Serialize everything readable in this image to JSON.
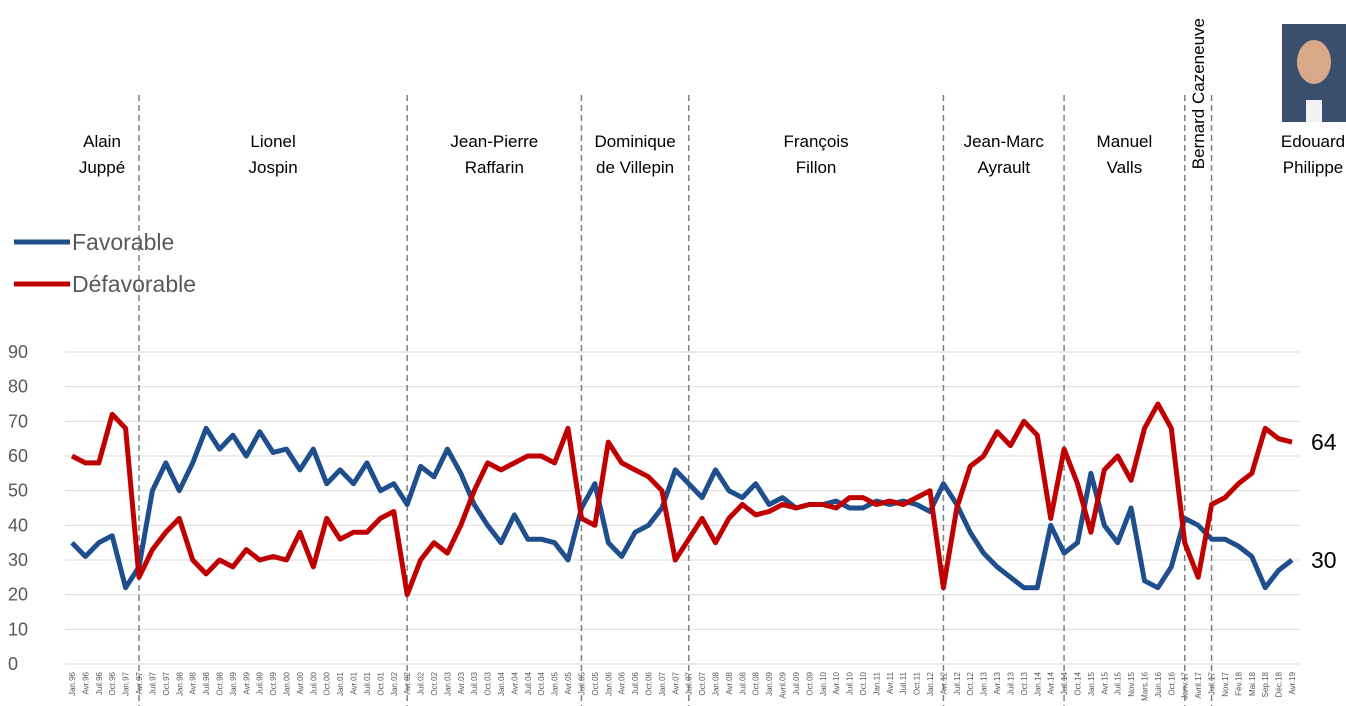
{
  "chart_data": {
    "type": "line",
    "categories": [
      "Jan.96",
      "Avr.96",
      "Juil.96",
      "Oct.96",
      "Jan.97",
      "Avr.97",
      "Juil.97",
      "Oct.97",
      "Jan.98",
      "Avr.98",
      "Juil.98",
      "Oct.98",
      "Jan.99",
      "Avr.99",
      "Juil.99",
      "Oct.99",
      "Jan.00",
      "Avr.00",
      "Juil.00",
      "Oct.00",
      "Jan.01",
      "Avr.01",
      "Juil.01",
      "Oct.01",
      "Jan.02",
      "Avr.02",
      "Juil.02",
      "Oct.02",
      "Jan.03",
      "Avr.03",
      "Juil.03",
      "Oct.03",
      "Jan.04",
      "Avr.04",
      "Juil.04",
      "Oct.04",
      "Jan.05",
      "Avr.05",
      "Juil.05",
      "Oct.05",
      "Jan.06",
      "Avr.06",
      "Juil.06",
      "Oct.06",
      "Jan.07",
      "Avr.07",
      "Juil.07",
      "Oct.07",
      "Jan.08",
      "Avr.08",
      "Juil.08",
      "Oct.08",
      "Jan.09",
      "Avril.09",
      "Juil.09",
      "Oct.09",
      "Jan.10",
      "Avr.10",
      "Juil.10",
      "Oct.10",
      "Jan.11",
      "Avr.11",
      "Juil.11",
      "Oct.11",
      "Jan.12",
      "Avr.12",
      "Juil.12",
      "Oct.12",
      "Jan.13",
      "Avr.13",
      "Juil.13",
      "Oct.13",
      "Jan.14",
      "Avr.14",
      "Juil.14",
      "Oct.14",
      "Jan.15",
      "Avr.15",
      "Juil.15",
      "Nov.15",
      "Mars.16",
      "Juin.16",
      "Oct.16",
      "Janv.17",
      "Avril.17",
      "Juil.17",
      "Nov.17",
      "Fév.18",
      "Mai.18",
      "Sep.18",
      "Déc.18",
      "Avr.19"
    ],
    "series": [
      {
        "name": "Favorable",
        "color": "#1f4e8c",
        "values": [
          35,
          31,
          35,
          37,
          22,
          28,
          50,
          58,
          50,
          58,
          68,
          62,
          66,
          60,
          67,
          61,
          62,
          56,
          62,
          52,
          56,
          52,
          58,
          50,
          52,
          46,
          57,
          54,
          62,
          55,
          46,
          40,
          35,
          43,
          36,
          36,
          35,
          30,
          45,
          52,
          35,
          31,
          38,
          40,
          45,
          56,
          52,
          48,
          56,
          50,
          48,
          52,
          46,
          48,
          45,
          46,
          46,
          47,
          45,
          45,
          47,
          46,
          47,
          46,
          44,
          52,
          46,
          38,
          32,
          28,
          25,
          22,
          22,
          40,
          32,
          35,
          55,
          40,
          35,
          45,
          24,
          22,
          28,
          42,
          40,
          36,
          36,
          34,
          31,
          22,
          27,
          30
        ]
      },
      {
        "name": "Défavorable",
        "color": "#c00000",
        "values": [
          60,
          58,
          58,
          72,
          68,
          25,
          33,
          38,
          42,
          30,
          26,
          30,
          28,
          33,
          30,
          31,
          30,
          38,
          28,
          42,
          36,
          38,
          38,
          42,
          44,
          20,
          30,
          35,
          32,
          40,
          50,
          58,
          56,
          58,
          60,
          60,
          58,
          68,
          42,
          40,
          64,
          58,
          56,
          54,
          50,
          30,
          36,
          42,
          35,
          42,
          46,
          43,
          44,
          46,
          45,
          46,
          46,
          45,
          48,
          48,
          46,
          47,
          46,
          48,
          50,
          22,
          45,
          57,
          60,
          67,
          63,
          70,
          66,
          42,
          62,
          52,
          38,
          56,
          60,
          53,
          68,
          75,
          68,
          35,
          25,
          46,
          48,
          52,
          55,
          68,
          65,
          64
        ]
      }
    ],
    "ylim": [
      0,
      90
    ],
    "yticks": [
      0,
      10,
      20,
      30,
      40,
      50,
      60,
      70,
      80,
      90
    ],
    "grid": true,
    "periods": [
      {
        "from": "Jan.96",
        "label": [
          "Alain",
          "Juppé"
        ]
      },
      {
        "from": "Avr.97",
        "label": [
          "Lionel",
          "Jospin"
        ]
      },
      {
        "from": "Avr.02",
        "label": [
          "Jean-Pierre",
          "Raffarin"
        ]
      },
      {
        "from": "Juil.05",
        "label": [
          "Dominique",
          "de Villepin"
        ]
      },
      {
        "from": "Juil.07",
        "label": [
          "François",
          "Fillon"
        ]
      },
      {
        "from": "Avr.12",
        "label": [
          "Jean-Marc",
          "Ayrault"
        ]
      },
      {
        "from": "Juil.14",
        "label": [
          "Manuel",
          "Valls"
        ]
      },
      {
        "from": "Janv.17",
        "label": [
          "Bernard Cazeneuve"
        ],
        "rotated": true
      },
      {
        "from": "Juil.17",
        "label": [
          "Edouard",
          "Philippe"
        ]
      }
    ]
  }
}
